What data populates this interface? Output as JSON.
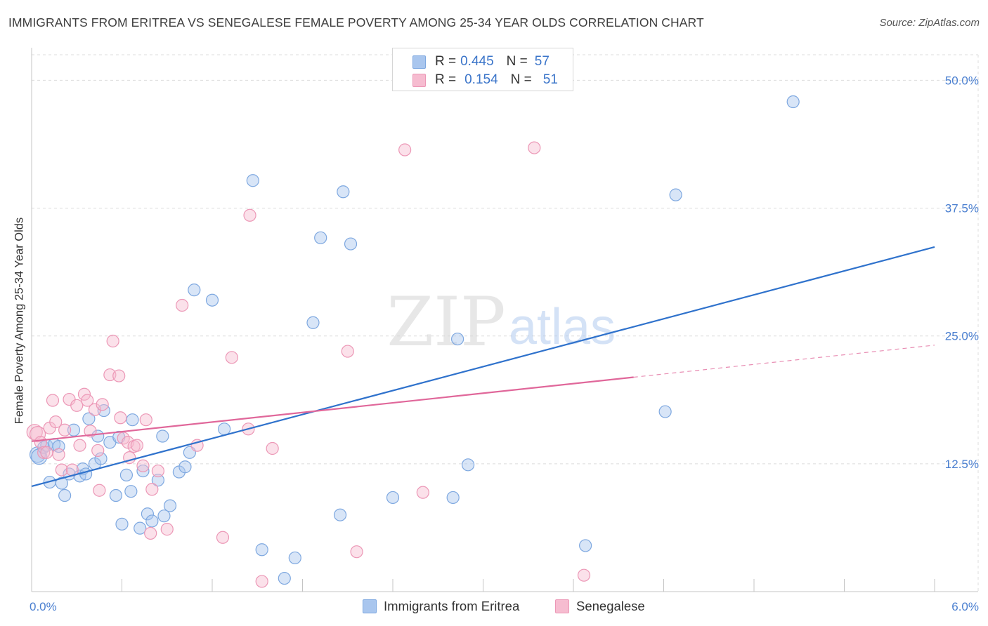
{
  "title": "IMMIGRANTS FROM ERITREA VS SENEGALESE FEMALE POVERTY AMONG 25-34 YEAR OLDS CORRELATION CHART",
  "source": "Source: ZipAtlas.com",
  "watermark": {
    "zip": "ZIP",
    "atlas": "atlas"
  },
  "colors": {
    "blue_fill": "#a9c6ee",
    "blue_stroke": "#7ea8e0",
    "blue_line": "#2f72cc",
    "pink_fill": "#f6bcd0",
    "pink_stroke": "#ec97b6",
    "pink_line": "#e0679a",
    "tick_label": "#4a7fd0",
    "grid": "#dcdcdc"
  },
  "legend": {
    "r_label": "R =",
    "n_label": "N =",
    "entries": [
      {
        "r": "0.445",
        "n": "57"
      },
      {
        "r": "0.154",
        "n": "51"
      }
    ]
  },
  "chart_data": {
    "type": "scatter",
    "title": "IMMIGRANTS FROM ERITREA VS SENEGALESE FEMALE POVERTY AMONG 25-34 YEAR OLDS CORRELATION CHART",
    "xlabel": "",
    "ylabel": "Female Poverty Among 25-34 Year Olds",
    "xlim": [
      0,
      6
    ],
    "ylim": [
      0,
      52.5
    ],
    "x_tick_labels": [
      "0.0%",
      "6.0%"
    ],
    "y_ticks": [
      12.5,
      25.0,
      37.5,
      50.0
    ],
    "y_tick_labels": [
      "12.5%",
      "25.0%",
      "37.5%",
      "50.0%"
    ],
    "grid": true,
    "legend_position": "top-center",
    "series": [
      {
        "name": "Immigrants from Eritrea",
        "r": 0.445,
        "n": 57,
        "trend": {
          "x0": 0.0,
          "y0": 10.3,
          "x1": 6.0,
          "y1": 33.7,
          "dashed_from": null
        },
        "points": [
          [
            0.04,
            13.4
          ],
          [
            0.05,
            13.2
          ],
          [
            0.08,
            14.1
          ],
          [
            0.1,
            14.3
          ],
          [
            0.12,
            10.7
          ],
          [
            0.15,
            14.4
          ],
          [
            0.18,
            14.2
          ],
          [
            0.2,
            10.6
          ],
          [
            0.22,
            9.4
          ],
          [
            0.25,
            11.5
          ],
          [
            0.28,
            15.8
          ],
          [
            0.32,
            11.3
          ],
          [
            0.34,
            12.0
          ],
          [
            0.36,
            11.5
          ],
          [
            0.38,
            16.9
          ],
          [
            0.42,
            12.5
          ],
          [
            0.44,
            15.2
          ],
          [
            0.46,
            13.0
          ],
          [
            0.48,
            17.7
          ],
          [
            0.52,
            14.6
          ],
          [
            0.56,
            9.4
          ],
          [
            0.58,
            15.1
          ],
          [
            0.6,
            6.6
          ],
          [
            0.63,
            11.4
          ],
          [
            0.66,
            9.8
          ],
          [
            0.67,
            16.8
          ],
          [
            0.72,
            6.2
          ],
          [
            0.74,
            11.8
          ],
          [
            0.77,
            7.6
          ],
          [
            0.8,
            6.9
          ],
          [
            0.84,
            10.9
          ],
          [
            0.87,
            15.2
          ],
          [
            0.88,
            7.4
          ],
          [
            0.92,
            8.4
          ],
          [
            0.98,
            11.7
          ],
          [
            1.02,
            12.2
          ],
          [
            1.05,
            13.6
          ],
          [
            1.08,
            29.5
          ],
          [
            1.2,
            28.5
          ],
          [
            1.28,
            15.9
          ],
          [
            1.47,
            40.2
          ],
          [
            1.53,
            4.1
          ],
          [
            1.68,
            1.3
          ],
          [
            1.75,
            3.3
          ],
          [
            1.87,
            26.3
          ],
          [
            1.92,
            34.6
          ],
          [
            2.05,
            7.5
          ],
          [
            2.07,
            39.1
          ],
          [
            2.12,
            34.0
          ],
          [
            2.4,
            9.2
          ],
          [
            2.8,
            9.2
          ],
          [
            2.83,
            24.7
          ],
          [
            2.9,
            12.4
          ],
          [
            3.68,
            4.5
          ],
          [
            4.21,
            17.6
          ],
          [
            4.28,
            38.8
          ],
          [
            5.06,
            47.9
          ]
        ]
      },
      {
        "name": "Senegalese",
        "r": 0.154,
        "n": 51,
        "trend": {
          "x0": 0.0,
          "y0": 14.7,
          "x1": 6.0,
          "y1": 24.1,
          "dashed_from": 4.0
        },
        "points": [
          [
            0.02,
            15.6
          ],
          [
            0.04,
            15.4
          ],
          [
            0.06,
            14.6
          ],
          [
            0.08,
            13.6
          ],
          [
            0.1,
            13.6
          ],
          [
            0.12,
            16.0
          ],
          [
            0.14,
            18.7
          ],
          [
            0.16,
            16.6
          ],
          [
            0.18,
            13.4
          ],
          [
            0.2,
            11.9
          ],
          [
            0.22,
            15.8
          ],
          [
            0.25,
            18.8
          ],
          [
            0.27,
            11.9
          ],
          [
            0.3,
            18.2
          ],
          [
            0.32,
            14.3
          ],
          [
            0.35,
            19.3
          ],
          [
            0.37,
            18.7
          ],
          [
            0.39,
            15.7
          ],
          [
            0.42,
            17.8
          ],
          [
            0.44,
            13.8
          ],
          [
            0.45,
            9.9
          ],
          [
            0.47,
            18.3
          ],
          [
            0.52,
            21.2
          ],
          [
            0.54,
            24.5
          ],
          [
            0.58,
            21.1
          ],
          [
            0.59,
            17.0
          ],
          [
            0.61,
            15.0
          ],
          [
            0.64,
            14.6
          ],
          [
            0.65,
            13.1
          ],
          [
            0.68,
            14.2
          ],
          [
            0.7,
            14.3
          ],
          [
            0.74,
            12.3
          ],
          [
            0.76,
            16.8
          ],
          [
            0.79,
            5.7
          ],
          [
            0.8,
            10.0
          ],
          [
            0.84,
            11.8
          ],
          [
            0.9,
            6.1
          ],
          [
            1.0,
            28.0
          ],
          [
            1.1,
            14.3
          ],
          [
            1.27,
            5.3
          ],
          [
            1.33,
            22.9
          ],
          [
            1.44,
            15.9
          ],
          [
            1.45,
            36.8
          ],
          [
            1.53,
            1.0
          ],
          [
            1.6,
            14.0
          ],
          [
            2.1,
            23.5
          ],
          [
            2.16,
            3.9
          ],
          [
            2.48,
            43.2
          ],
          [
            2.6,
            9.7
          ],
          [
            3.34,
            43.4
          ],
          [
            3.67,
            1.6
          ]
        ]
      }
    ]
  }
}
